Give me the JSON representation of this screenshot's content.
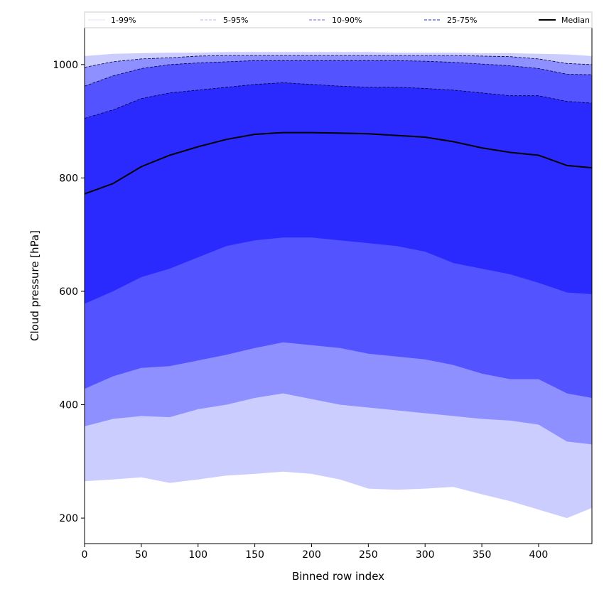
{
  "chart_data": {
    "type": "area",
    "xlabel": "Binned row index",
    "ylabel": "Cloud pressure [hPa]",
    "xlim": [
      0,
      447
    ],
    "ylim": [
      155,
      1065
    ],
    "xticks": [
      0,
      50,
      100,
      150,
      200,
      250,
      300,
      350,
      400
    ],
    "yticks": [
      200,
      400,
      600,
      800,
      1000
    ],
    "legend_position": "top",
    "legend": [
      {
        "label": "1-99%",
        "style": "solid-thin",
        "color": "#dcdcf4"
      },
      {
        "label": "5-95%",
        "style": "dashed-thin",
        "color": "#a0a0f0"
      },
      {
        "label": "10-90%",
        "style": "dashed",
        "color": "#8080f0"
      },
      {
        "label": "25-75%",
        "style": "dashed",
        "color": "#5050e8"
      },
      {
        "label": "Median",
        "style": "solid-thick",
        "color": "#000000"
      }
    ],
    "x": [
      0,
      25,
      50,
      75,
      100,
      125,
      150,
      175,
      200,
      225,
      250,
      275,
      300,
      325,
      350,
      375,
      400,
      425,
      447
    ],
    "bands": [
      {
        "name": "1-99%",
        "color": "#cccdff",
        "lower": [
          265,
          268,
          272,
          262,
          268,
          275,
          278,
          282,
          278,
          268,
          252,
          250,
          252,
          255,
          242,
          230,
          215,
          200,
          218
        ],
        "upper": [
          1015,
          1019,
          1020,
          1021,
          1021,
          1022,
          1022,
          1022,
          1022,
          1022,
          1022,
          1021,
          1021,
          1021,
          1020,
          1020,
          1019,
          1018,
          1015
        ]
      },
      {
        "name": "5-95%",
        "color": "#8f90ff",
        "lower": [
          362,
          375,
          380,
          378,
          392,
          400,
          412,
          420,
          410,
          400,
          395,
          390,
          385,
          380,
          375,
          372,
          365,
          335,
          330
        ],
        "upper": [
          995,
          1005,
          1010,
          1012,
          1015,
          1016,
          1016,
          1016,
          1016,
          1016,
          1016,
          1016,
          1016,
          1016,
          1015,
          1014,
          1010,
          1002,
          1000
        ]
      },
      {
        "name": "10-90%",
        "color": "#5354ff",
        "lower": [
          428,
          450,
          465,
          468,
          478,
          488,
          500,
          510,
          505,
          500,
          490,
          485,
          480,
          470,
          455,
          445,
          445,
          420,
          412
        ],
        "upper": [
          962,
          980,
          993,
          1000,
          1003,
          1005,
          1007,
          1007,
          1007,
          1007,
          1007,
          1007,
          1006,
          1004,
          1001,
          998,
          993,
          983,
          982
        ]
      },
      {
        "name": "25-75%",
        "color": "#2a2aff",
        "lower": [
          578,
          600,
          625,
          640,
          660,
          680,
          690,
          695,
          695,
          690,
          685,
          680,
          670,
          650,
          640,
          630,
          615,
          598,
          595
        ],
        "upper": [
          905,
          920,
          940,
          950,
          955,
          960,
          965,
          968,
          965,
          962,
          960,
          960,
          958,
          955,
          950,
          945,
          945,
          935,
          932
        ]
      }
    ],
    "median": [
      772,
      790,
      820,
      840,
      855,
      868,
      877,
      880,
      880,
      879,
      878,
      875,
      872,
      864,
      853,
      845,
      840,
      822,
      818
    ]
  }
}
